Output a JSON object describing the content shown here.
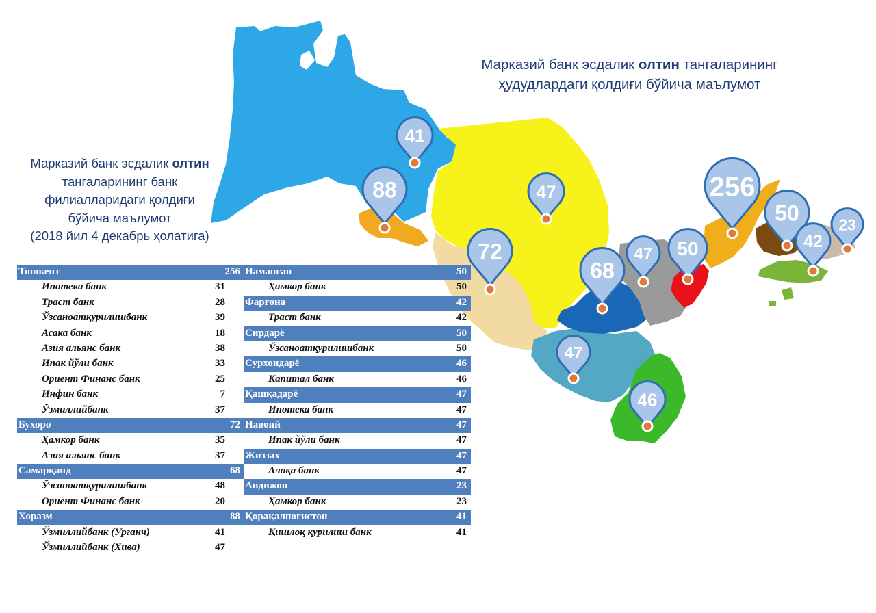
{
  "map_title": {
    "line1_pre": "Марказий банк  эсдалик ",
    "line1_bold": "олтин",
    "line1_post": " тангаларининг",
    "line2": "ҳудудлардаги қолдиғи бўйича маълумот"
  },
  "table_title": {
    "line1_pre": "Марказий банк  эсдалик ",
    "line1_bold": "олтин",
    "line2": "тангаларининг банк",
    "line3": "филиалларидаги қолдиғи",
    "line4": "бўйича маълумот",
    "line5": "(2018 йил 4 декабрь ҳолатига)"
  },
  "colors": {
    "header_bg": "#4f7fbd",
    "pin_fill": "#a9c6e8",
    "pin_stroke": "#2f6db5",
    "pin_dot": "#e07a3a",
    "karakalpakstan": "#2ea7e6",
    "khorezm": "#f2a922",
    "navoi": "#f7f21a",
    "bukhara": "#f2dba2",
    "samarkand": "#1a67b8",
    "jizzakh": "#9a9a9a",
    "tashkent_region": "#e8121b",
    "namangan": "#f0ae1a",
    "fergana": "#7ab53a",
    "andijan": "#7a4a10",
    "kashkadarya": "#53a8c3",
    "surkhandarya": "#3cb82b"
  },
  "left_table": [
    {
      "type": "header",
      "name": "Тошкент",
      "value": "256"
    },
    {
      "type": "bank",
      "name": "Ипотека банк",
      "value": "31"
    },
    {
      "type": "bank",
      "name": "Траст банк",
      "value": "28"
    },
    {
      "type": "bank",
      "name": "Ўзсаноатқурилишбанк",
      "value": "39"
    },
    {
      "type": "bank",
      "name": "Асака банк",
      "value": "18"
    },
    {
      "type": "bank",
      "name": "Азия альянс банк",
      "value": "38"
    },
    {
      "type": "bank",
      "name": "Ипак йўли банк",
      "value": "33"
    },
    {
      "type": "bank",
      "name": "Ориент Финанс банк",
      "value": "25"
    },
    {
      "type": "bank",
      "name": "Инфин банк",
      "value": "7"
    },
    {
      "type": "bank",
      "name": "Ўзмиллийбанк",
      "value": "37"
    },
    {
      "type": "header",
      "name": "Бухоро",
      "value": "72"
    },
    {
      "type": "bank",
      "name": "Ҳамкор банк",
      "value": "35"
    },
    {
      "type": "bank",
      "name": "Азия альянс банк",
      "value": "37"
    },
    {
      "type": "header",
      "name": "Самарқанд",
      "value": "68"
    },
    {
      "type": "bank",
      "name": "Ўзсаноатқурилишбанк",
      "value": "48"
    },
    {
      "type": "bank",
      "name": "Ориент Финанс банк",
      "value": "20"
    },
    {
      "type": "header",
      "name": "Хоразм",
      "value": "88"
    },
    {
      "type": "bank",
      "name": "Ўзмиллийбанк (Урганч)",
      "value": "41"
    },
    {
      "type": "bank",
      "name": "Ўзмиллийбанк (Хива)",
      "value": "47"
    }
  ],
  "right_table": [
    {
      "type": "header",
      "name": "Наманган",
      "value": "50"
    },
    {
      "type": "bank",
      "name": "Ҳамкор банк",
      "value": "50"
    },
    {
      "type": "header",
      "name": "Фарғона",
      "value": "42"
    },
    {
      "type": "bank",
      "name": "Траст банк",
      "value": "42"
    },
    {
      "type": "header",
      "name": "Сирдарё",
      "value": "50"
    },
    {
      "type": "bank",
      "name": "Ўзсаноатқурилишбанк",
      "value": "50"
    },
    {
      "type": "header",
      "name": "Сурхондарё",
      "value": "46"
    },
    {
      "type": "bank",
      "name": "Капитал банк",
      "value": "46"
    },
    {
      "type": "header",
      "name": "Қашқадарё",
      "value": "47"
    },
    {
      "type": "bank",
      "name": "Ипотека банк",
      "value": "47"
    },
    {
      "type": "header",
      "name": "Навоий",
      "value": "47"
    },
    {
      "type": "bank",
      "name": "Ипак йўли банк",
      "value": "47"
    },
    {
      "type": "header",
      "name": "Жиззах",
      "value": "47"
    },
    {
      "type": "bank",
      "name": "Алоқа банк",
      "value": "47"
    },
    {
      "type": "header",
      "name": "Андижон",
      "value": "23"
    },
    {
      "type": "bank",
      "name": "Ҳамкор банк",
      "value": "23"
    },
    {
      "type": "header",
      "name": "Қорақалпоғистон",
      "value": "41"
    },
    {
      "type": "bank",
      "name": "Қишлоқ қурилиш банк",
      "value": "41"
    }
  ],
  "map_pins": [
    {
      "region": "karakalpakstan",
      "value": "41"
    },
    {
      "region": "khorezm",
      "value": "88"
    },
    {
      "region": "navoi",
      "value": "47"
    },
    {
      "region": "bukhara",
      "value": "72"
    },
    {
      "region": "samarkand",
      "value": "68"
    },
    {
      "region": "jizzakh",
      "value": "47"
    },
    {
      "region": "syrdarya",
      "value": "50"
    },
    {
      "region": "tashkent",
      "value": "256"
    },
    {
      "region": "namangan",
      "value": "50"
    },
    {
      "region": "fergana",
      "value": "42"
    },
    {
      "region": "andijan",
      "value": "23"
    },
    {
      "region": "kashkadarya",
      "value": "47"
    },
    {
      "region": "surkhandarya",
      "value": "46"
    }
  ]
}
